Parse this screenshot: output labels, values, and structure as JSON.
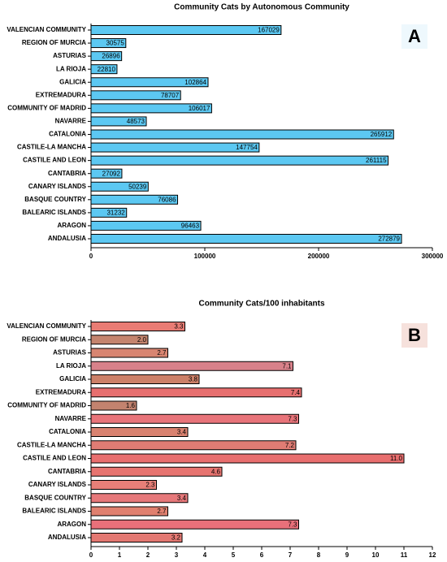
{
  "chart_data": [
    {
      "type": "bar",
      "orientation": "horizontal",
      "title": "Community Cats by Autonomous Community",
      "panel_label": "A",
      "categories": [
        "VALENCIAN COMMUNITY",
        "REGION OF MURCIA",
        "ASTURIAS",
        "LA RIOJA",
        "GALICIA",
        "EXTREMADURA",
        "COMMUNITY OF MADRID",
        "NAVARRE",
        "CATALONIA",
        "CASTILE-LA MANCHA",
        "CASTILE AND LEON",
        "CANTABRIA",
        "CANARY ISLANDS",
        "BASQUE COUNTRY",
        "BALEARIC ISLANDS",
        "ARAGON",
        "ANDALUSIA"
      ],
      "values": [
        167029,
        30575,
        26896,
        22810,
        102864,
        78707,
        106017,
        48573,
        265912,
        147754,
        261115,
        27092,
        50239,
        76086,
        31232,
        96463,
        272879
      ],
      "color": "#5cc8f2",
      "xlim": [
        0,
        300000
      ],
      "xticks": [
        0,
        100000,
        200000,
        300000
      ]
    },
    {
      "type": "bar",
      "orientation": "horizontal",
      "title": "Community Cats/100 inhabitants",
      "panel_label": "B",
      "categories": [
        "VALENCIAN COMMUNITY",
        "REGION OF MURCIA",
        "ASTURIAS",
        "LA RIOJA",
        "GALICIA",
        "EXTREMADURA",
        "COMMUNITY OF MADRID",
        "NAVARRE",
        "CATALONIA",
        "CASTILE-LA MANCHA",
        "CASTILE AND LEON",
        "CANTABRIA",
        "CANARY ISLANDS",
        "BASQUE COUNTRY",
        "BALEARIC ISLANDS",
        "ARAGON",
        "ANDALUSIA"
      ],
      "values": [
        3.3,
        2.0,
        2.7,
        7.1,
        3.8,
        7.4,
        1.6,
        7.3,
        3.4,
        7.2,
        11.0,
        4.6,
        2.3,
        3.4,
        2.7,
        7.3,
        3.2
      ],
      "value_labels": [
        "3.3",
        "2.0",
        "2.7",
        "7.1",
        "3.8",
        "7.4",
        "1.6",
        "7.3",
        "3.4",
        "7.2",
        "11.0",
        "4.6",
        "2.3",
        "3.4",
        "2.7",
        "7.3",
        "3.2"
      ],
      "colors": [
        "#e97c74",
        "#c4846e",
        "#d88571",
        "#d8818a",
        "#cc8068",
        "#e76f6f",
        "#c3836f",
        "#e8747a",
        "#d98270",
        "#e07c74",
        "#e86e6e",
        "#e77470",
        "#e77f78",
        "#e6787a",
        "#e0806f",
        "#e9707a",
        "#e37872"
      ],
      "xlim": [
        0,
        12
      ],
      "xticks": [
        0,
        1,
        2,
        3,
        4,
        5,
        6,
        7,
        8,
        9,
        10,
        11,
        12
      ]
    }
  ]
}
